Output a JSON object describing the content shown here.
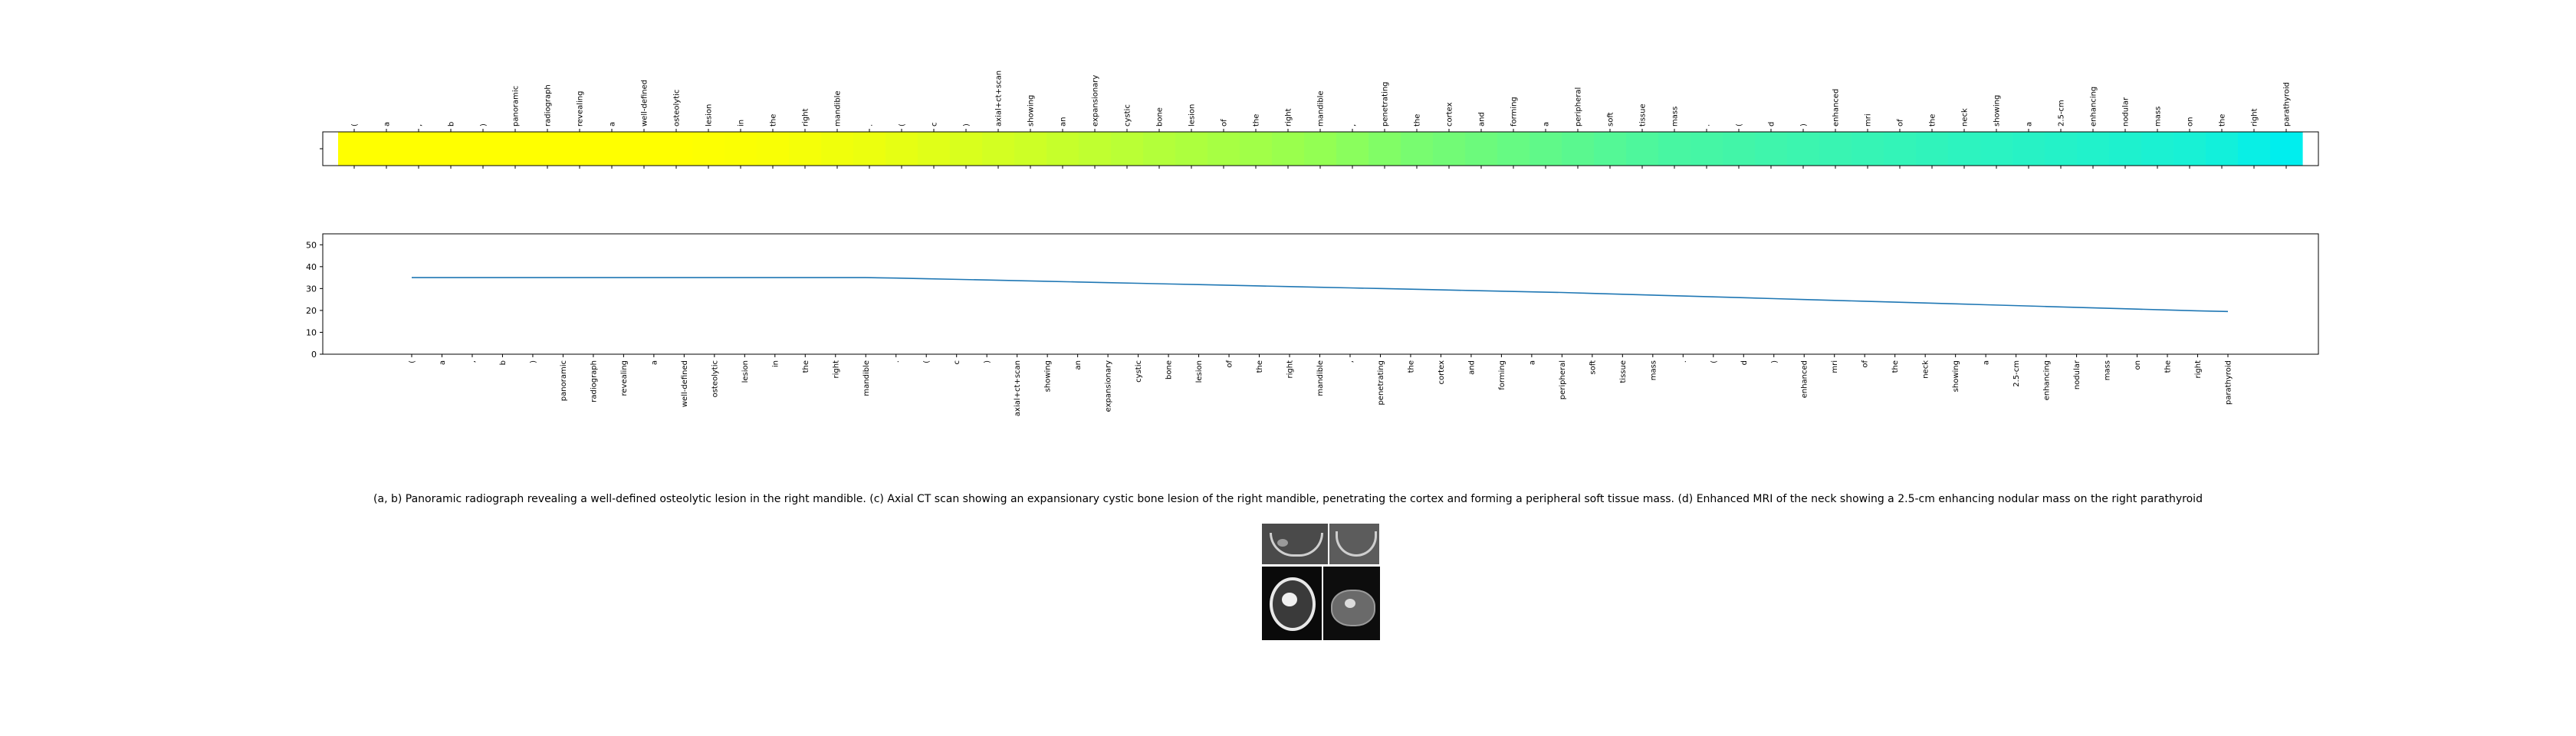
{
  "chart_data": [
    {
      "type": "heatmap",
      "colormap": "viridis-like (yellow to cyan)",
      "yticks": [
        ""
      ],
      "tokens": [
        "(",
        "a",
        ",",
        "b",
        ")",
        "panoramic",
        "radiograph",
        "revealing",
        "a",
        "well-defined",
        "osteolytic",
        "lesion",
        "in",
        "the",
        "right",
        "mandible",
        ".",
        "(",
        "c",
        ")",
        "axial+ct+scan",
        "showing",
        "an",
        "expansionary",
        "cystic",
        "bone",
        "lesion",
        "of",
        "the",
        "right",
        "mandible",
        ",",
        "penetrating",
        "the",
        "cortex",
        "and",
        "forming",
        "a",
        "peripheral",
        "soft",
        "tissue",
        "mass",
        ".",
        "(",
        "d",
        ")",
        "enhanced",
        "mri",
        "of",
        "the",
        "neck",
        "showing",
        "a",
        "2.5-cm",
        "enhancing",
        "nodular",
        "mass",
        "on",
        "the",
        "right",
        "parathyroid"
      ],
      "values": [
        0.0,
        0.0,
        0.0,
        0.0,
        0.0,
        0.0,
        0.0,
        0.0,
        0.0,
        0.0,
        0.0,
        0.01,
        0.02,
        0.03,
        0.05,
        0.07,
        0.09,
        0.12,
        0.15,
        0.18,
        0.21,
        0.24,
        0.27,
        0.3,
        0.33,
        0.36,
        0.39,
        0.42,
        0.45,
        0.48,
        0.51,
        0.54,
        0.57,
        0.6,
        0.62,
        0.64,
        0.66,
        0.68,
        0.7,
        0.72,
        0.74,
        0.76,
        0.77,
        0.78,
        0.79,
        0.8,
        0.81,
        0.82,
        0.83,
        0.84,
        0.85,
        0.86,
        0.87,
        0.88,
        0.89,
        0.9,
        0.91,
        0.92,
        0.94,
        0.97,
        1.0
      ]
    },
    {
      "type": "line",
      "ylim": [
        0,
        55
      ],
      "yticks": [
        0,
        10,
        20,
        30,
        40,
        50
      ],
      "xtick_labels": [
        "(",
        "a",
        ",",
        "b",
        ")",
        "panoramic",
        "radiograph",
        "revealing",
        "a",
        "well-defined",
        "osteolytic",
        "lesion",
        "in",
        "the",
        "right",
        "mandible",
        ".",
        "(",
        "c",
        ")",
        "axial+ct+scan",
        "showing",
        "an",
        "expansionary",
        "cystic",
        "bone",
        "lesion",
        "of",
        "the",
        "right",
        "mandible",
        ",",
        "penetrating",
        "the",
        "cortex",
        "and",
        "forming",
        "a",
        "peripheral",
        "soft",
        "tissue",
        "mass",
        ".",
        "(",
        "d",
        ")",
        "enhanced",
        "mri",
        "of",
        "the",
        "neck",
        "showing",
        "a",
        "2.5-cm",
        "enhancing",
        "nodular",
        "mass",
        "on",
        "the",
        "right",
        "parathyroid"
      ],
      "series": [
        {
          "color": "#1f77b4",
          "values": [
            35.0,
            35.0,
            35.0,
            35.0,
            35.0,
            35.0,
            35.0,
            35.0,
            35.0,
            35.0,
            35.0,
            35.0,
            35.0,
            35.0,
            35.0,
            35.0,
            34.8,
            34.5,
            34.2,
            33.9,
            33.6,
            33.3,
            33.0,
            32.7,
            32.4,
            32.1,
            31.8,
            31.5,
            31.2,
            30.9,
            30.6,
            30.3,
            30.0,
            29.7,
            29.4,
            29.1,
            28.8,
            28.5,
            28.2,
            27.8,
            27.4,
            27.0,
            26.6,
            26.2,
            25.8,
            25.4,
            25.0,
            24.6,
            24.2,
            23.8,
            23.4,
            23.0,
            22.6,
            22.2,
            21.8,
            21.4,
            21.0,
            20.6,
            20.2,
            19.8,
            19.5
          ]
        }
      ]
    }
  ],
  "caption": "(a, b) Panoramic radiograph revealing a well-defined osteolytic lesion in the right mandible. (c) Axial CT scan showing an expansionary cystic bone lesion of the right mandible, penetrating the cortex and forming a peripheral soft tissue mass. (d) Enhanced MRI of the neck showing a 2.5-cm enhancing nodular mass on the right parathyroid"
}
